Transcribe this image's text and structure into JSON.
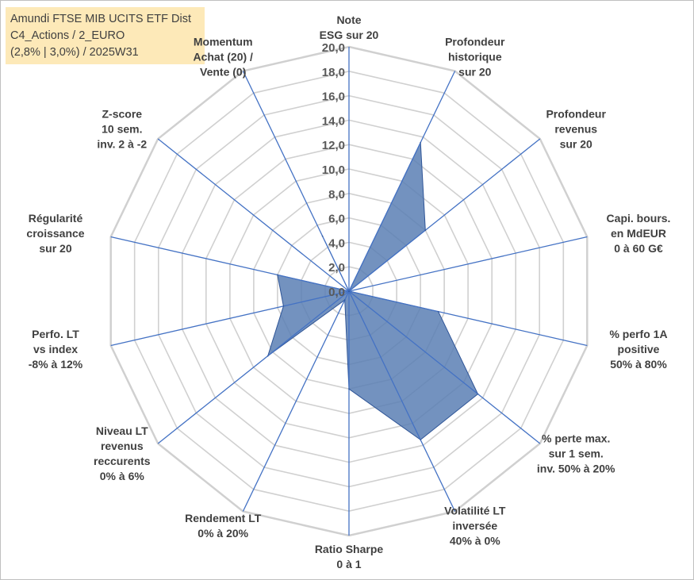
{
  "title_lines": [
    "Amundi FTSE MIB UCITS ETF Dist",
    "C4_Actions / 2_EURO",
    "(2,8% | 3,0%) / 2025W31"
  ],
  "chart_data": {
    "type": "radar",
    "rmin": 0,
    "rmax": 20,
    "ticks": [
      "0,0",
      "2,0",
      "4,0",
      "6,0",
      "8,0",
      "10,0",
      "12,0",
      "14,0",
      "16,0",
      "18,0",
      "20,0"
    ],
    "grid": true,
    "colors": {
      "fill": "#5b7fb4",
      "line": "#2f5597",
      "grid": "#d0d0d0",
      "spoke": "#4472c4"
    },
    "axes": [
      {
        "label": [
          "Note",
          "ESG sur 20"
        ]
      },
      {
        "label": [
          "Profondeur",
          "historique",
          "sur 20"
        ]
      },
      {
        "label": [
          "Profondeur",
          "revenus",
          "sur 20"
        ]
      },
      {
        "label": [
          "Capi. bours.",
          "en MdEUR",
          "0 à 60 G€"
        ]
      },
      {
        "label": [
          "% perfo 1A",
          "positive",
          "50% à 80%"
        ]
      },
      {
        "label": [
          "% perte max.",
          "sur 1 sem.",
          "inv. 50% à 20%"
        ]
      },
      {
        "label": [
          "Volatilité LT",
          "inversée",
          "40% à 0%"
        ]
      },
      {
        "label": [
          "Ratio Sharpe",
          "0 à 1"
        ]
      },
      {
        "label": [
          "Rendement LT",
          "0% à 20%"
        ]
      },
      {
        "label": [
          "Niveau LT",
          "revenus",
          "reccurents",
          "0% à 6%"
        ]
      },
      {
        "label": [
          "Perfo. LT",
          "vs index",
          "-8% à 12%"
        ]
      },
      {
        "label": [
          "Régularité",
          "croissance",
          "sur 20"
        ]
      },
      {
        "label": [
          "Z-score",
          "10 sem.",
          "inv. 2 à -2"
        ]
      },
      {
        "label": [
          "Momentum",
          "Achat (20) /",
          "Vente (0)"
        ]
      }
    ],
    "series": [
      {
        "values": [
          0.0,
          13.5,
          8.0,
          0.0,
          7.5,
          13.5,
          13.5,
          8.0,
          0.8,
          8.5,
          5.5,
          6.0,
          0.0,
          5.0
        ]
      }
    ]
  }
}
